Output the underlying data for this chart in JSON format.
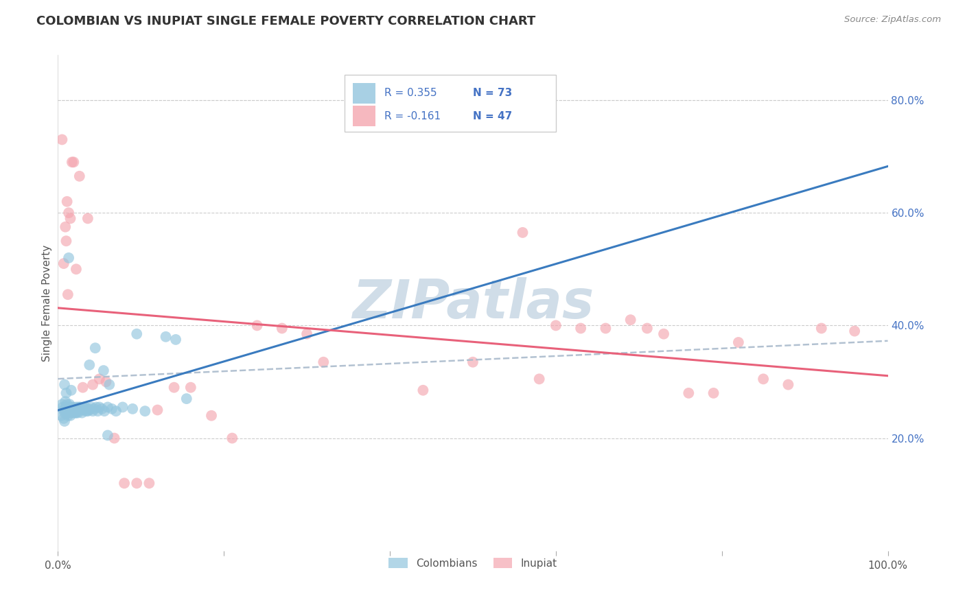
{
  "title": "COLOMBIAN VS INUPIAT SINGLE FEMALE POVERTY CORRELATION CHART",
  "source": "Source: ZipAtlas.com",
  "ylabel": "Single Female Poverty",
  "xlim": [
    0.0,
    1.0
  ],
  "ylim": [
    0.0,
    0.88
  ],
  "xticks": [
    0.0,
    0.2,
    0.4,
    0.6,
    0.8,
    1.0
  ],
  "xtick_labels": [
    "0.0%",
    "",
    "",
    "",
    "",
    "100.0%"
  ],
  "yticks": [
    0.2,
    0.4,
    0.6,
    0.8
  ],
  "ytick_labels": [
    "20.0%",
    "40.0%",
    "60.0%",
    "80.0%"
  ],
  "legend_r1": "R = 0.355",
  "legend_n1": "N = 73",
  "legend_r2": "R = -0.161",
  "legend_n2": "N = 47",
  "colombian_color": "#92c5de",
  "inupiat_color": "#f4a6b0",
  "trendline_colombian_color": "#3a7bbf",
  "trendline_inupiat_color": "#e8617a",
  "trendline_dashed_color": "#aabbcc",
  "background_color": "#ffffff",
  "watermark": "ZIPatlas",
  "watermark_color": "#d0dde8",
  "colombians_x": [
    0.004,
    0.005,
    0.006,
    0.007,
    0.007,
    0.008,
    0.008,
    0.009,
    0.009,
    0.01,
    0.01,
    0.011,
    0.011,
    0.012,
    0.012,
    0.013,
    0.013,
    0.014,
    0.014,
    0.015,
    0.015,
    0.016,
    0.016,
    0.017,
    0.018,
    0.019,
    0.02,
    0.021,
    0.022,
    0.022,
    0.023,
    0.024,
    0.025,
    0.026,
    0.027,
    0.028,
    0.029,
    0.03,
    0.031,
    0.032,
    0.033,
    0.034,
    0.035,
    0.036,
    0.037,
    0.038,
    0.04,
    0.042,
    0.044,
    0.046,
    0.048,
    0.05,
    0.053,
    0.056,
    0.06,
    0.065,
    0.07,
    0.078,
    0.09,
    0.105,
    0.038,
    0.045,
    0.055,
    0.062,
    0.008,
    0.01,
    0.013,
    0.016,
    0.095,
    0.13,
    0.142,
    0.155,
    0.06
  ],
  "colombians_y": [
    0.24,
    0.26,
    0.255,
    0.25,
    0.235,
    0.245,
    0.23,
    0.25,
    0.265,
    0.255,
    0.245,
    0.26,
    0.25,
    0.255,
    0.24,
    0.25,
    0.245,
    0.255,
    0.26,
    0.25,
    0.24,
    0.255,
    0.245,
    0.25,
    0.255,
    0.245,
    0.25,
    0.245,
    0.255,
    0.245,
    0.25,
    0.245,
    0.255,
    0.25,
    0.255,
    0.25,
    0.245,
    0.25,
    0.255,
    0.25,
    0.255,
    0.248,
    0.252,
    0.248,
    0.252,
    0.25,
    0.255,
    0.248,
    0.252,
    0.255,
    0.248,
    0.255,
    0.252,
    0.248,
    0.255,
    0.252,
    0.248,
    0.255,
    0.252,
    0.248,
    0.33,
    0.36,
    0.32,
    0.295,
    0.295,
    0.28,
    0.52,
    0.285,
    0.385,
    0.38,
    0.375,
    0.27,
    0.205
  ],
  "inupiat_x": [
    0.005,
    0.007,
    0.009,
    0.01,
    0.011,
    0.012,
    0.013,
    0.015,
    0.017,
    0.019,
    0.022,
    0.026,
    0.03,
    0.036,
    0.042,
    0.05,
    0.058,
    0.068,
    0.08,
    0.095,
    0.11,
    0.12,
    0.14,
    0.16,
    0.185,
    0.21,
    0.24,
    0.27,
    0.3,
    0.32,
    0.44,
    0.5,
    0.56,
    0.58,
    0.6,
    0.63,
    0.66,
    0.69,
    0.71,
    0.73,
    0.76,
    0.79,
    0.82,
    0.85,
    0.88,
    0.92,
    0.96
  ],
  "inupiat_y": [
    0.73,
    0.51,
    0.575,
    0.55,
    0.62,
    0.455,
    0.6,
    0.59,
    0.69,
    0.69,
    0.5,
    0.665,
    0.29,
    0.59,
    0.295,
    0.305,
    0.3,
    0.2,
    0.12,
    0.12,
    0.12,
    0.25,
    0.29,
    0.29,
    0.24,
    0.2,
    0.4,
    0.395,
    0.385,
    0.335,
    0.285,
    0.335,
    0.565,
    0.305,
    0.4,
    0.395,
    0.395,
    0.41,
    0.395,
    0.385,
    0.28,
    0.28,
    0.37,
    0.305,
    0.295,
    0.395,
    0.39
  ]
}
